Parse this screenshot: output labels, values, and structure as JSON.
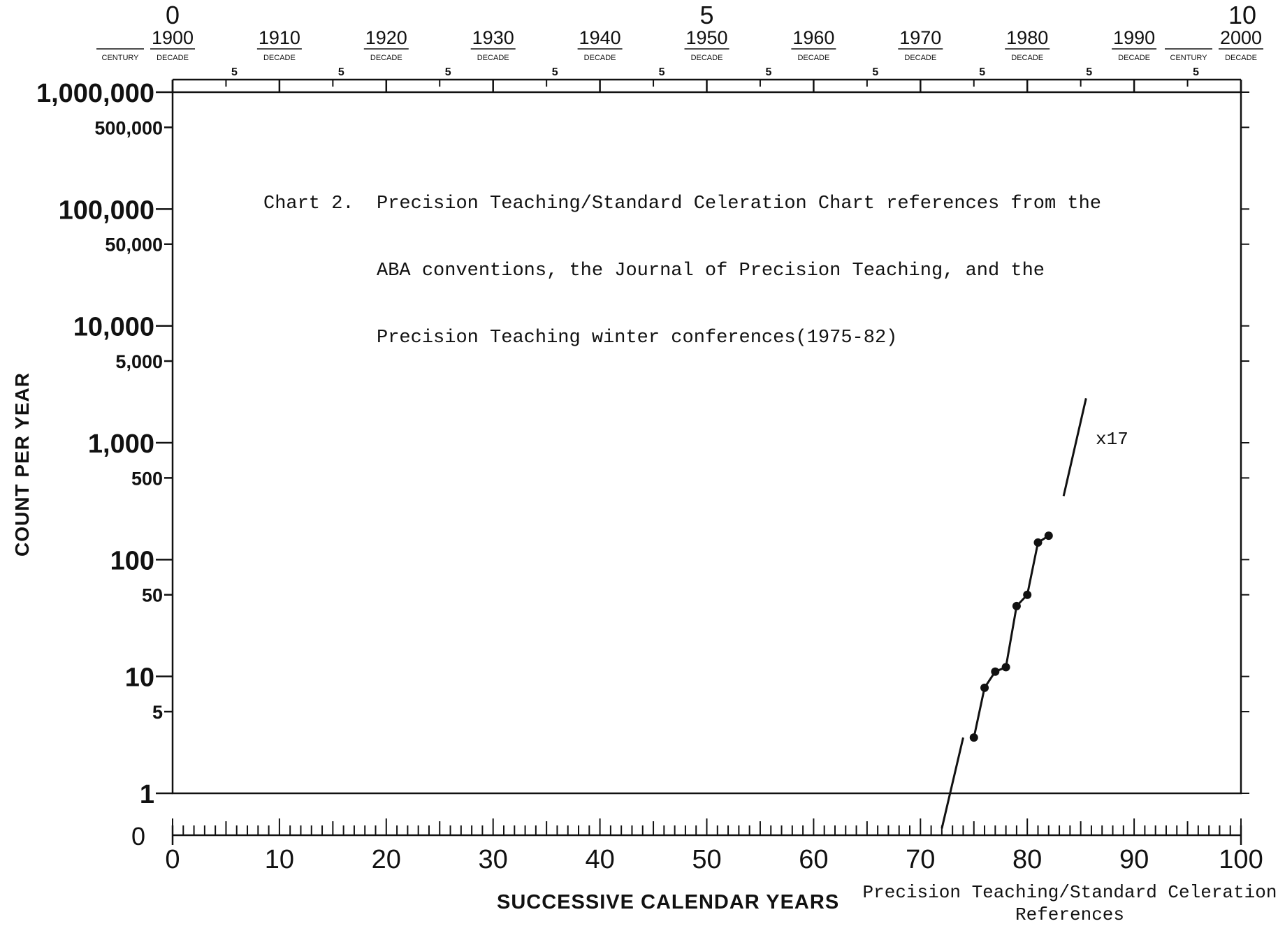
{
  "chart_data": {
    "type": "line",
    "title_lines": [
      "Chart 2.  Precision Teaching/Standard Celeration Chart references from the",
      "          ABA conventions, the Journal of Precision Teaching, and the",
      "          Precision Teaching winter conferences(1975-82)"
    ],
    "ylabel": "COUNT PER YEAR",
    "xlabel": "SUCCESSIVE CALENDAR YEARS",
    "caption_lines": [
      "Precision Teaching/Standard Celeration",
      "References"
    ],
    "y_scale": "log",
    "ylim": [
      1,
      1000000
    ],
    "xlim": [
      0,
      100
    ],
    "y_tick_labels": [
      {
        "value": 1000000,
        "label": "1,000,000",
        "major": true
      },
      {
        "value": 500000,
        "label": "500,000",
        "major": false
      },
      {
        "value": 100000,
        "label": "100,000",
        "major": true
      },
      {
        "value": 50000,
        "label": "50,000",
        "major": false
      },
      {
        "value": 10000,
        "label": "10,000",
        "major": true
      },
      {
        "value": 5000,
        "label": "5,000",
        "major": false
      },
      {
        "value": 1000,
        "label": "1,000",
        "major": true
      },
      {
        "value": 500,
        "label": "500",
        "major": false
      },
      {
        "value": 100,
        "label": "100",
        "major": true
      },
      {
        "value": 50,
        "label": "50",
        "major": false
      },
      {
        "value": 10,
        "label": "10",
        "major": true
      },
      {
        "value": 5,
        "label": "5",
        "major": false
      },
      {
        "value": 1,
        "label": "1",
        "major": true
      }
    ],
    "zero_label": "0",
    "x_tick_labels": [
      "0",
      "10",
      "20",
      "30",
      "40",
      "50",
      "60",
      "70",
      "80",
      "90",
      "100"
    ],
    "top_axis": {
      "century_marks": [
        {
          "year": 0,
          "label": "0"
        },
        {
          "year": 50,
          "label": "5"
        },
        {
          "year": 100,
          "label": "10"
        }
      ],
      "decades": [
        {
          "year": 0,
          "label": "1900"
        },
        {
          "year": 10,
          "label": "1910"
        },
        {
          "year": 20,
          "label": "1920"
        },
        {
          "year": 30,
          "label": "1930"
        },
        {
          "year": 40,
          "label": "1940"
        },
        {
          "year": 50,
          "label": "1950"
        },
        {
          "year": 60,
          "label": "1960"
        },
        {
          "year": 70,
          "label": "1970"
        },
        {
          "year": 80,
          "label": "1980"
        },
        {
          "year": 90,
          "label": "1990"
        },
        {
          "year": 100,
          "label": "2000"
        }
      ],
      "decade_word": "DECADE",
      "century_word": "CENTURY",
      "half_decade_label": "5"
    },
    "series": [
      {
        "x": [
          75,
          76,
          77,
          78,
          79,
          80,
          81,
          82
        ],
        "y": [
          3,
          8,
          11,
          12,
          40,
          50,
          140,
          160
        ]
      }
    ],
    "celeration_lines": [
      {
        "x": [
          72,
          74
        ],
        "y": [
          0.5,
          3
        ]
      },
      {
        "x": [
          83.4,
          85.5
        ],
        "y": [
          350,
          2400
        ],
        "label": "x17"
      }
    ],
    "grid": false
  }
}
